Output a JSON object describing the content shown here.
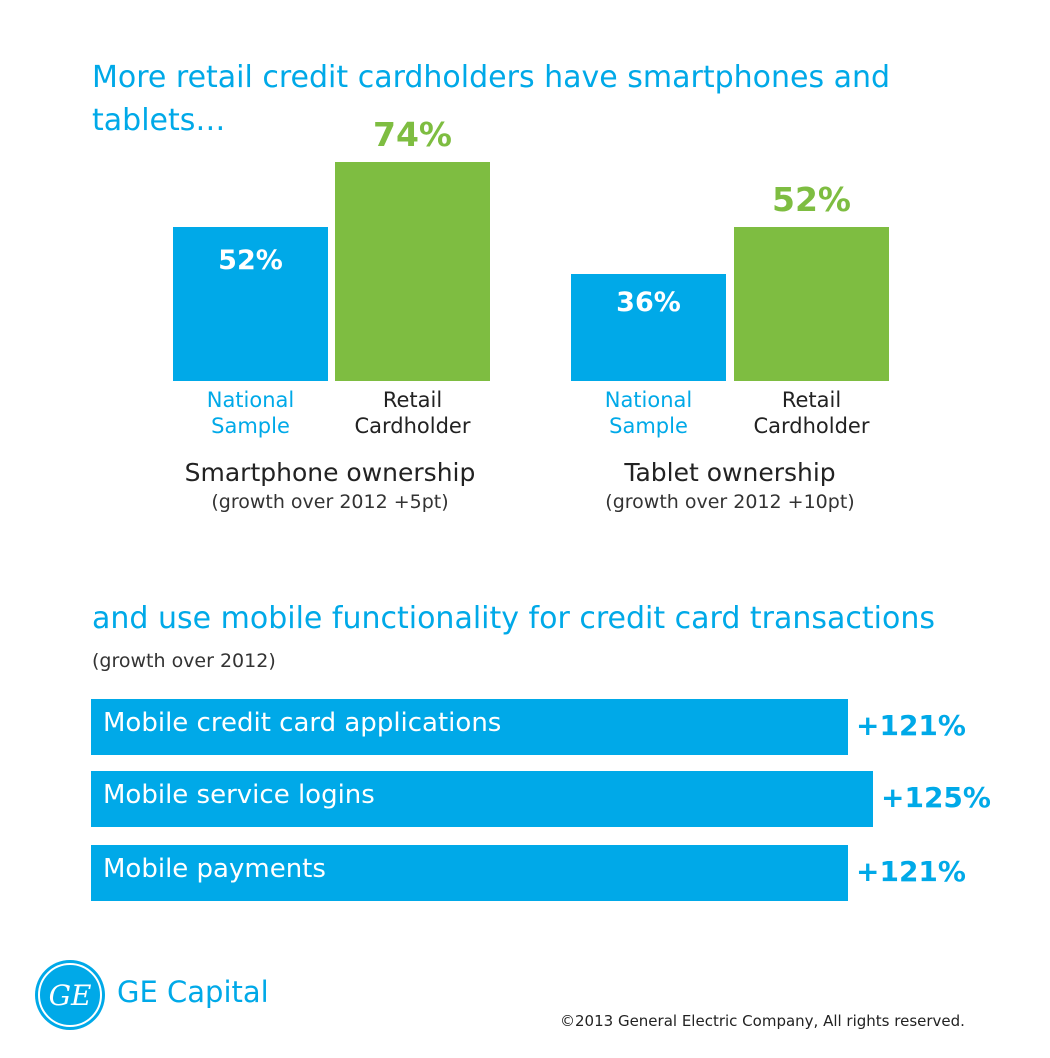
{
  "headline": "More retail credit cardholders have smartphones and tablets…",
  "colors": {
    "blue": "#00a9e8",
    "green": "#7ebd41"
  },
  "chart_data": [
    {
      "type": "bar",
      "title": "Smartphone ownership",
      "subtitle": "(growth over 2012 +5pt)",
      "categories": [
        "National Sample",
        "Retail Cardholder"
      ],
      "values": [
        52,
        74
      ],
      "value_labels": [
        "52%",
        "74%"
      ],
      "ylim": [
        0,
        100
      ]
    },
    {
      "type": "bar",
      "title": "Tablet ownership",
      "subtitle": "(growth over 2012 +10pt)",
      "categories": [
        "National Sample",
        "Retail Cardholder"
      ],
      "values": [
        36,
        52
      ],
      "value_labels": [
        "36%",
        "52%"
      ],
      "ylim": [
        0,
        100
      ]
    },
    {
      "type": "bar",
      "orientation": "horizontal",
      "title": "and use mobile functionality for credit card transactions",
      "subtitle": "(growth over 2012)",
      "categories": [
        "Mobile credit card applications",
        "Mobile service logins",
        "Mobile payments"
      ],
      "values": [
        121,
        125,
        121
      ],
      "value_labels": [
        "+121%",
        "+125%",
        "+121%"
      ]
    }
  ],
  "branding": {
    "logo_text": "GE",
    "name": "GE Capital",
    "copyright": "©2013 General Electric Company, All rights reserved."
  }
}
